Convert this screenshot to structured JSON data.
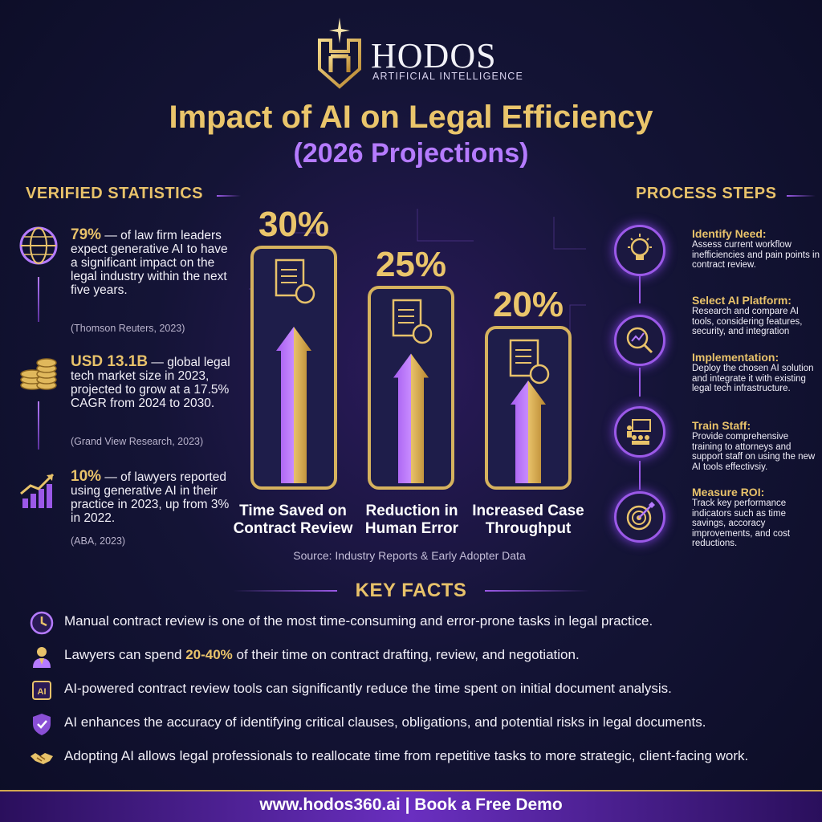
{
  "brand": {
    "name": "HODOS",
    "subtitle": "ARTIFICIAL INTELLIGENCE"
  },
  "title": "Impact of AI on Legal Efficiency",
  "subtitle": "(2026 Projections)",
  "stats": {
    "heading": "VERIFIED STATISTICS",
    "items": [
      {
        "icon": "globe-icon",
        "value": "79%",
        "text": " — of law firm leaders expect generative AI to have a significant impact on the legal industry within the next five years.",
        "source": "(Thomson Reuters, 2023)"
      },
      {
        "icon": "coins-icon",
        "value": "USD 13.1B",
        "text": " — global legal tech market size in 2023, projected to grow at a 17.5% CAGR from 2024 to 2030.",
        "source": "(Grand View Research, 2023)"
      },
      {
        "icon": "growth-chart-icon",
        "value": "10%",
        "text": " — of lawyers reported using generative AI in their practice in 2023, up from 3% in 2022.",
        "source": "(ABA, 2023)"
      }
    ]
  },
  "chart_data": {
    "type": "bar",
    "categories": [
      "Time Saved on Contract Review",
      "Reduction in Human Error",
      "Increased Case Throughput"
    ],
    "category_lines": [
      [
        "Time Saved on",
        "Contract Review"
      ],
      [
        "Reduction in",
        "Human Error"
      ],
      [
        "Increased Case",
        "Throughput"
      ]
    ],
    "values": [
      30,
      25,
      20
    ],
    "value_labels": [
      "30%",
      "25%",
      "20%"
    ],
    "unit": "%",
    "ylim": [
      0,
      30
    ],
    "source": "Source: Industry Reports & Early Adopter Data",
    "colors": {
      "bar_border": "#d6b25e",
      "arrow_left": "#a65cf0",
      "arrow_right": "#e8c26a",
      "value": "#eac56b"
    }
  },
  "process": {
    "heading": "PROCESS STEPS",
    "steps": [
      {
        "icon": "lightbulb-icon",
        "title": "Identify Need:",
        "desc": "Assess current workflow inefficiencies and pain points in contract review."
      },
      {
        "icon": "magnifier-chart-icon",
        "title": "Select AI Platform:",
        "desc": "Research and compare AI tools, considering features, security, and integration"
      },
      {
        "icon": "implementation-icon",
        "title": "Implementation:",
        "desc": "Deploy the chosen AI solution and integrate it with existing legal tech infrastructure."
      },
      {
        "icon": "presentation-icon",
        "title": "Train Staff:",
        "desc": "Provide comprehensive training to attorneys and support staff on using the new AI tools effectivsiy."
      },
      {
        "icon": "target-icon",
        "title": "Measure ROI:",
        "desc": "Track key performance indicators such as time savings, accoracy improvements, and cost reductions."
      }
    ]
  },
  "facts": {
    "heading": "KEY FACTS",
    "items": [
      {
        "icon": "clock-icon",
        "pre": "Manual contract review is one of the most time-consuming and error-prone tasks in legal practice.",
        "highlight": "",
        "post": ""
      },
      {
        "icon": "lawyer-icon",
        "pre": "Lawyers can spend ",
        "highlight": "20-40%",
        "post": " of their time on contract drafting, review, and negotiation."
      },
      {
        "icon": "ai-chip-icon",
        "pre": "AI-powered contract review tools can significantly reduce the time spent on initial document analysis.",
        "highlight": "",
        "post": ""
      },
      {
        "icon": "shield-check-icon",
        "pre": "AI enhances the accuracy of identifying critical clauses, obligations, and potential risks in legal documents.",
        "highlight": "",
        "post": ""
      },
      {
        "icon": "handshake-icon",
        "pre": "Adopting AI allows legal professionals to reallocate time from repetitive tasks to more strategic, client-facing work.",
        "highlight": "",
        "post": ""
      }
    ]
  },
  "footer": {
    "text": "www.hodos360.ai | Book a Free Demo"
  }
}
